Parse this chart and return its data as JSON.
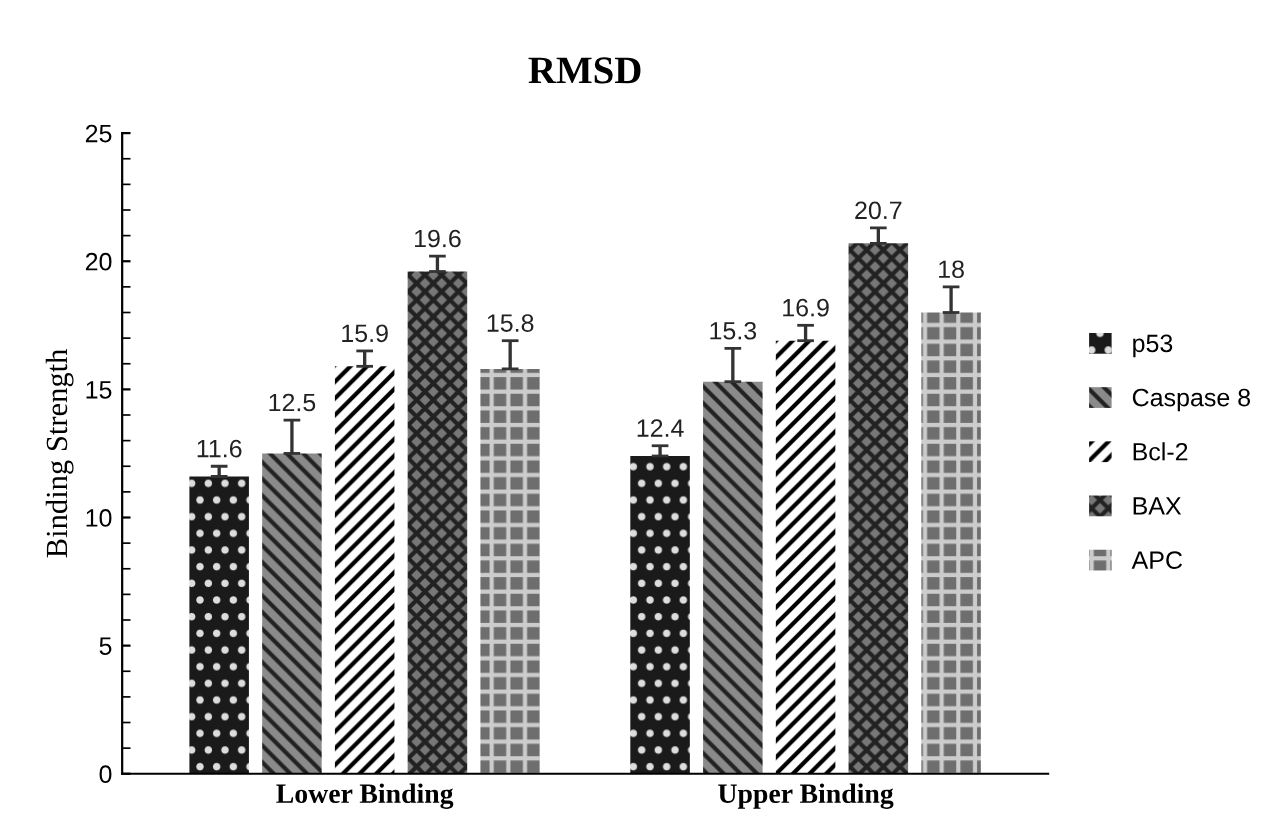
{
  "chart_data": {
    "type": "bar",
    "title": "RMSD",
    "ylabel": "Binding Strength",
    "categories": [
      "Lower Binding",
      "Upper Binding"
    ],
    "series": [
      {
        "name": "p53",
        "color": "#1a1a1a",
        "values": [
          11.6,
          12.4
        ],
        "errors": [
          0.4,
          0.4
        ]
      },
      {
        "name": "Caspase 8",
        "color": "#8a8a8a",
        "values": [
          12.5,
          15.3
        ],
        "errors": [
          1.3,
          1.3
        ]
      },
      {
        "name": "Bcl-2",
        "color": "#ffffff",
        "values": [
          15.9,
          16.9
        ],
        "errors": [
          0.6,
          0.6
        ]
      },
      {
        "name": "BAX",
        "color": "#777777",
        "values": [
          19.6,
          20.7
        ],
        "errors": [
          0.6,
          0.6
        ]
      },
      {
        "name": "APC",
        "color": "#6e6e6e",
        "values": [
          15.8,
          18
        ],
        "errors": [
          1.1,
          1.0
        ]
      }
    ],
    "ylim": [
      0,
      25
    ],
    "yticks": [
      0,
      5,
      10,
      15,
      20,
      25
    ],
    "grid": false,
    "legend": "right",
    "data_labels": true
  }
}
